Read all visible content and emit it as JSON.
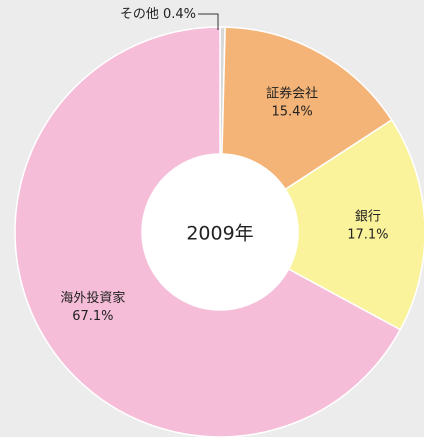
{
  "chart_data": {
    "type": "donut",
    "center_label": "2009年",
    "categories": [
      "その他",
      "証券会社",
      "銀行",
      "海外投資家"
    ],
    "values": [
      0.4,
      15.4,
      17.1,
      67.1
    ],
    "value_labels": [
      "0.4%",
      "15.4%",
      "17.1%",
      "67.1%"
    ],
    "colors": [
      "#d8d8d8",
      "#f5b477",
      "#faf39c",
      "#f5bdd8"
    ]
  }
}
